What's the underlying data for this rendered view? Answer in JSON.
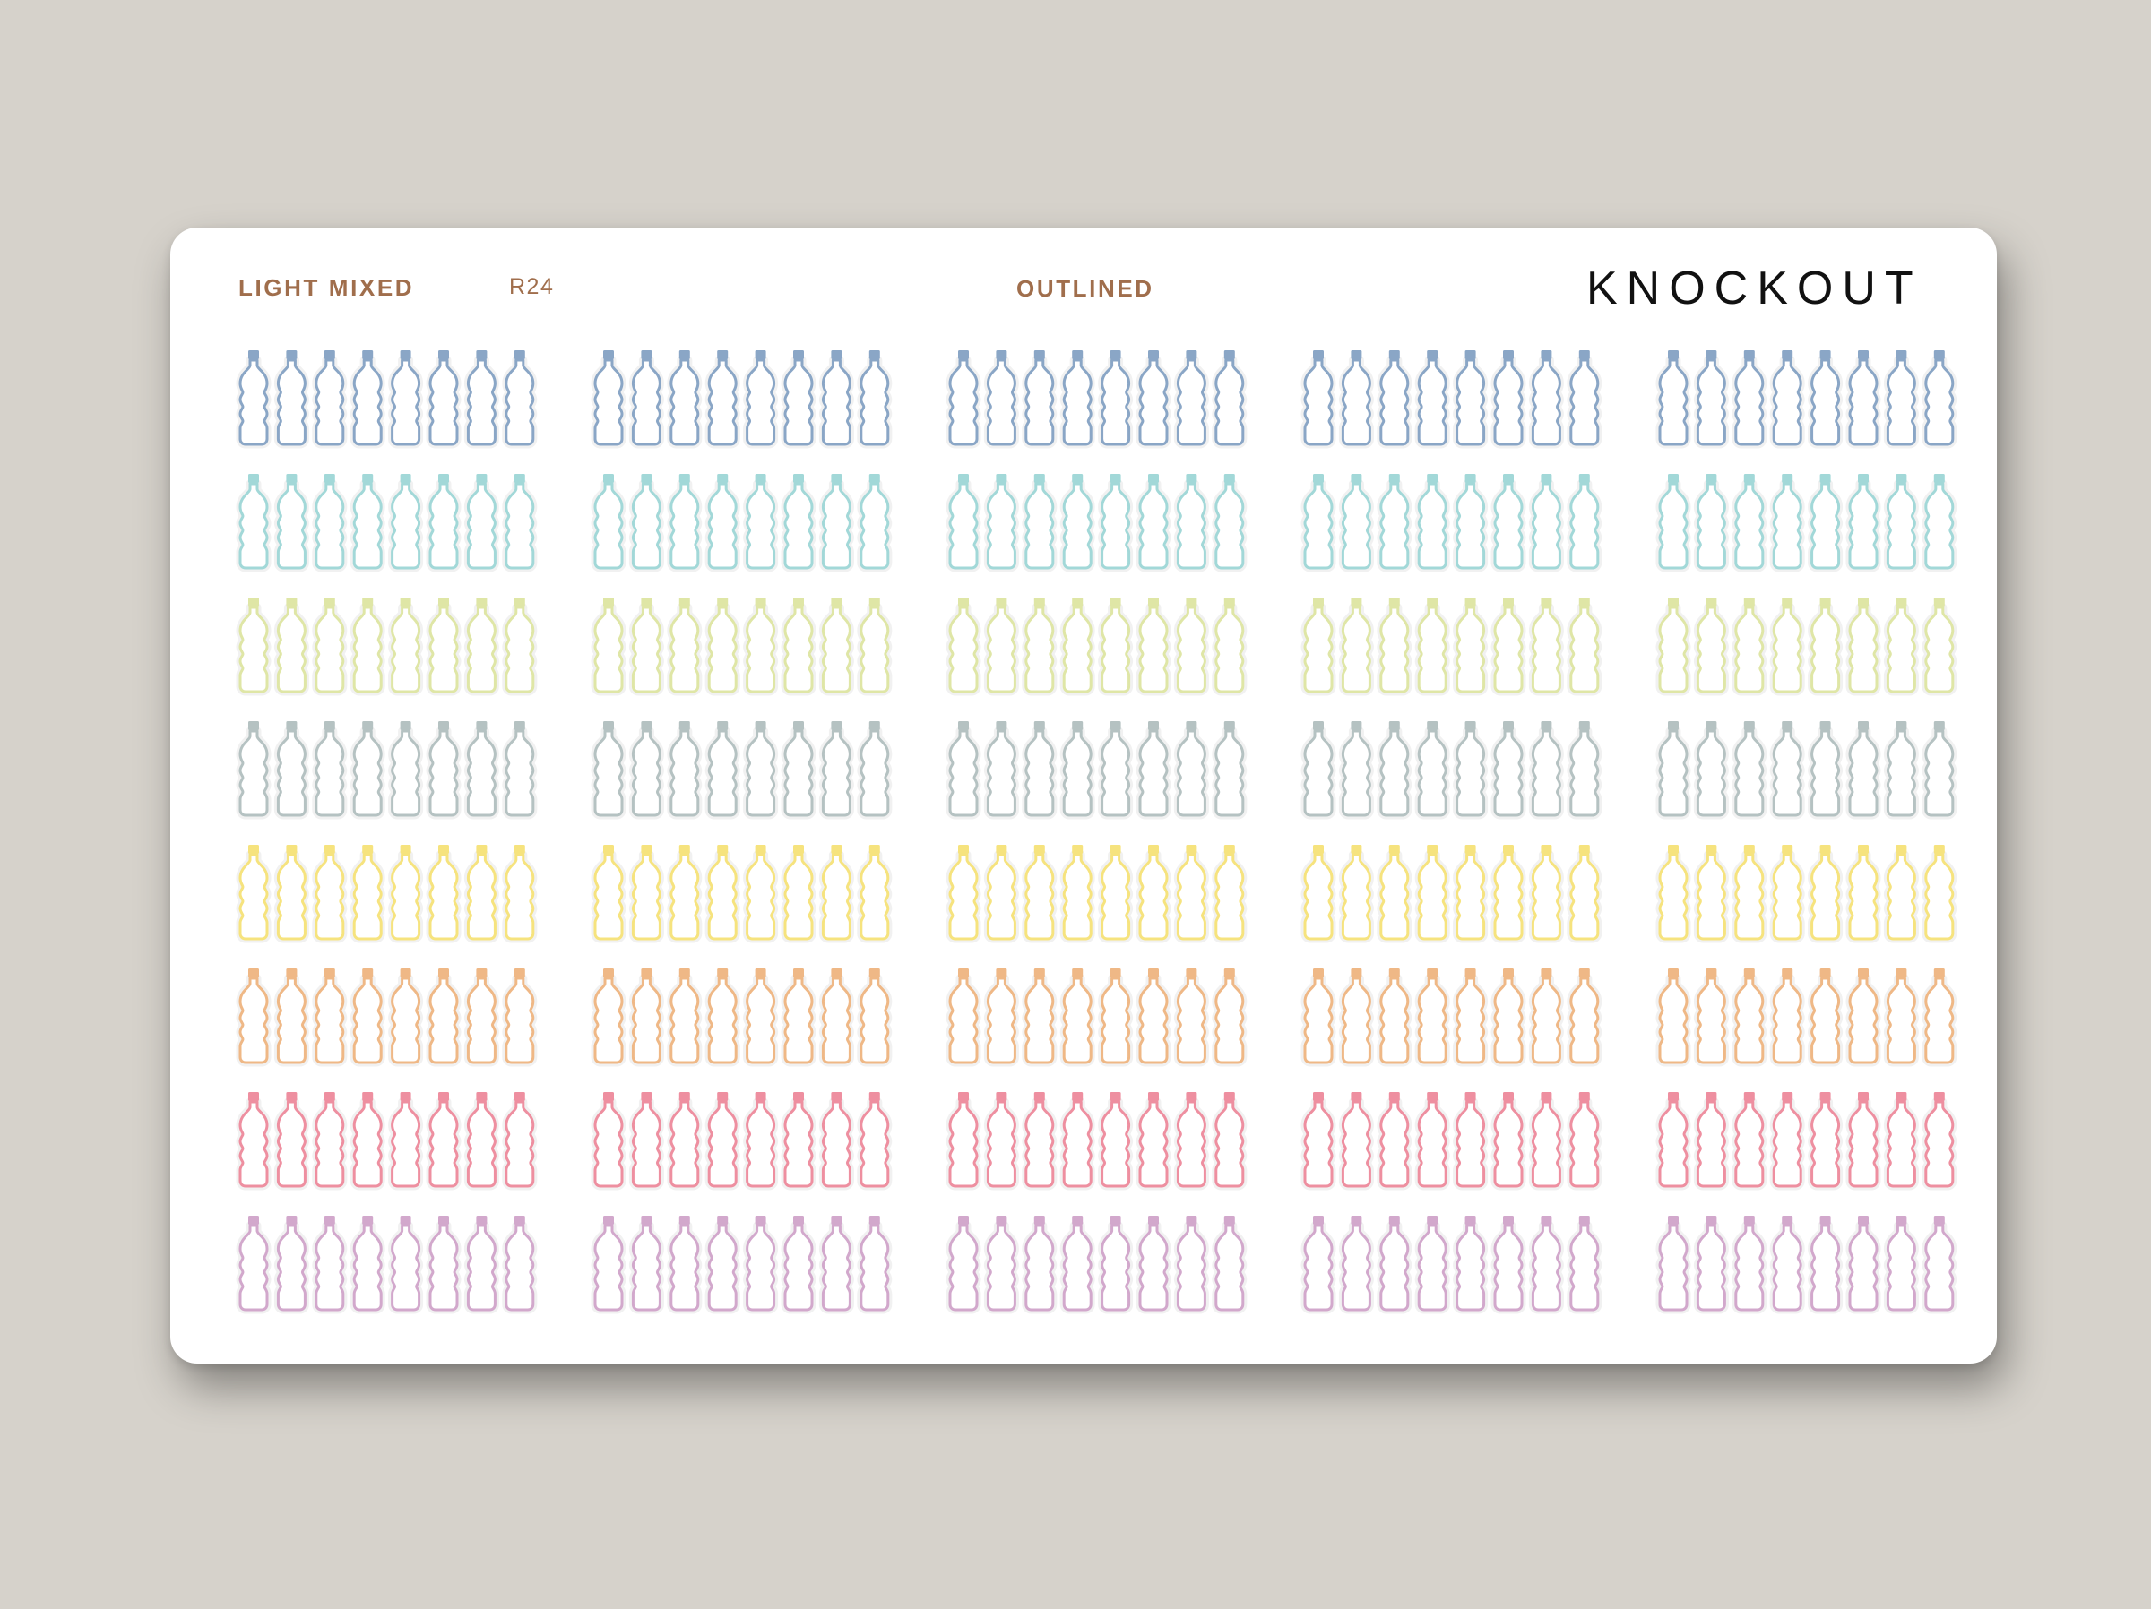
{
  "header": {
    "series": "LIGHT MIXED",
    "code": "R24",
    "style": "OUTLINED",
    "brand": "KNOCKOUT"
  },
  "sticker": {
    "icon": "water-bottle-icon",
    "rows": 8,
    "blocks": 5,
    "per_block": 8,
    "row_colors": [
      {
        "outline": "#8aa6c6",
        "cap": "#8aa6c6"
      },
      {
        "outline": "#a2d8d8",
        "cap": "#a2d8d8"
      },
      {
        "outline": "#dfe6a6",
        "cap": "#dfe6a6"
      },
      {
        "outline": "#b5c2c2",
        "cap": "#b5c2c2"
      },
      {
        "outline": "#f6e37e",
        "cap": "#f6e37e"
      },
      {
        "outline": "#efb886",
        "cap": "#efb886"
      },
      {
        "outline": "#ee8fa0",
        "cap": "#ee8fa0"
      },
      {
        "outline": "#d2a8cc",
        "cap": "#d2a8cc"
      }
    ]
  }
}
